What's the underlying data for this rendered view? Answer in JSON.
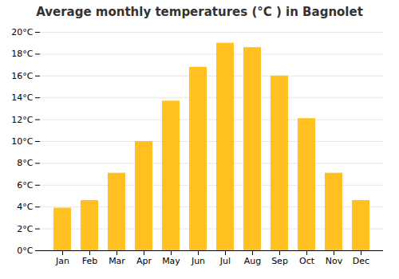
{
  "chart_data": {
    "type": "bar",
    "title": "Average monthly temperatures (°C ) in Bagnolet",
    "categories": [
      "Jan",
      "Feb",
      "Mar",
      "Apr",
      "May",
      "Jun",
      "Jul",
      "Aug",
      "Sep",
      "Oct",
      "Nov",
      "Dec"
    ],
    "values": [
      3.9,
      4.6,
      7.1,
      10.0,
      13.7,
      16.8,
      19.0,
      18.6,
      16.0,
      12.1,
      7.1,
      4.6
    ],
    "color": "#FFC020",
    "ylim": [
      0,
      20
    ],
    "yticks": [
      {
        "value": 0,
        "label": "0°C"
      },
      {
        "value": 2,
        "label": "2°C"
      },
      {
        "value": 4,
        "label": "4°C"
      },
      {
        "value": 6,
        "label": "6°C"
      },
      {
        "value": 8,
        "label": "8°C"
      },
      {
        "value": 10,
        "label": "10°C"
      },
      {
        "value": 12,
        "label": "12°C"
      },
      {
        "value": 14,
        "label": "14°C"
      },
      {
        "value": 16,
        "label": "16°C"
      },
      {
        "value": 18,
        "label": "18°C"
      },
      {
        "value": 20,
        "label": "20°C"
      }
    ],
    "grid": true
  }
}
